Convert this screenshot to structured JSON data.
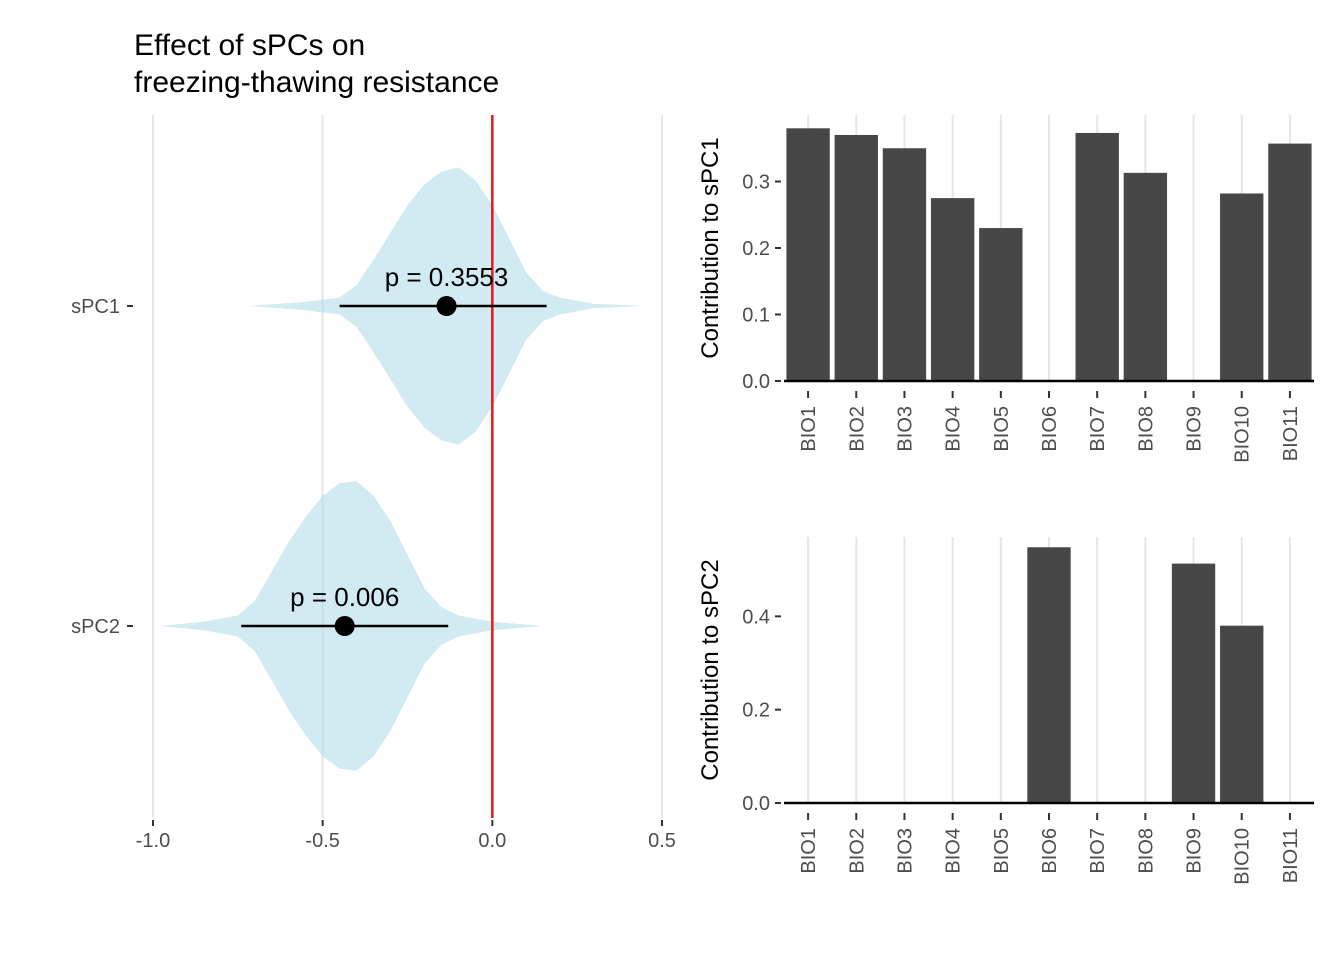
{
  "chart_data": [
    {
      "type": "violin",
      "title_lines": [
        "Effect of sPCs on",
        "freezing-thawing resistance"
      ],
      "xlabel": "",
      "ylabel": "",
      "xlim": [
        -1.0,
        0.5
      ],
      "x_ticks": [
        "-1.0",
        "-0.5",
        "0.0",
        "0.5"
      ],
      "x_tick_values": [
        -1.0,
        -0.5,
        0.0,
        0.5
      ],
      "reference_line": {
        "x": 0.0,
        "color": "#e31a1c"
      },
      "violin_color": "#add8e6",
      "grid": "vertical major",
      "series": [
        {
          "name": "sPC1",
          "median": -0.135,
          "interval": [
            -0.45,
            0.16
          ],
          "range": [
            -0.72,
            0.45
          ],
          "p_label": "p = 0.3553",
          "density": [
            [
              -0.72,
              0.0
            ],
            [
              -0.55,
              0.02
            ],
            [
              -0.45,
              0.04
            ],
            [
              -0.4,
              0.1
            ],
            [
              -0.35,
              0.22
            ],
            [
              -0.3,
              0.35
            ],
            [
              -0.25,
              0.48
            ],
            [
              -0.2,
              0.58
            ],
            [
              -0.15,
              0.64
            ],
            [
              -0.1,
              0.66
            ],
            [
              -0.05,
              0.6
            ],
            [
              0.0,
              0.48
            ],
            [
              0.05,
              0.32
            ],
            [
              0.1,
              0.16
            ],
            [
              0.15,
              0.07
            ],
            [
              0.2,
              0.04
            ],
            [
              0.3,
              0.01
            ],
            [
              0.45,
              0.0
            ]
          ]
        },
        {
          "name": "sPC2",
          "median": -0.435,
          "interval": [
            -0.74,
            -0.13
          ],
          "range": [
            -0.98,
            0.15
          ],
          "p_label": "p = 0.006",
          "density": [
            [
              -0.98,
              0.0
            ],
            [
              -0.85,
              0.02
            ],
            [
              -0.75,
              0.05
            ],
            [
              -0.7,
              0.12
            ],
            [
              -0.65,
              0.26
            ],
            [
              -0.6,
              0.4
            ],
            [
              -0.55,
              0.52
            ],
            [
              -0.5,
              0.62
            ],
            [
              -0.45,
              0.68
            ],
            [
              -0.4,
              0.69
            ],
            [
              -0.35,
              0.62
            ],
            [
              -0.3,
              0.5
            ],
            [
              -0.25,
              0.34
            ],
            [
              -0.2,
              0.18
            ],
            [
              -0.15,
              0.09
            ],
            [
              -0.1,
              0.05
            ],
            [
              0.0,
              0.02
            ],
            [
              0.15,
              0.0
            ]
          ]
        }
      ]
    },
    {
      "type": "bar",
      "ylabel": "Contribution to sPC1",
      "categories": [
        "BIO1",
        "BIO2",
        "BIO3",
        "BIO4",
        "BIO5",
        "BIO6",
        "BIO7",
        "BIO8",
        "BIO9",
        "BIO10",
        "BIO11"
      ],
      "values": [
        0.38,
        0.37,
        0.35,
        0.275,
        0.23,
        0,
        0.373,
        0.313,
        0,
        0.282,
        0.357
      ],
      "ylim": [
        0,
        0.4
      ],
      "y_ticks": [
        "0.0",
        "0.1",
        "0.2",
        "0.3"
      ],
      "y_tick_values": [
        0,
        0.1,
        0.2,
        0.3
      ],
      "bar_color": "#474747",
      "grid": "vertical major"
    },
    {
      "type": "bar",
      "ylabel": "Contribution to sPC2",
      "categories": [
        "BIO1",
        "BIO2",
        "BIO3",
        "BIO4",
        "BIO5",
        "BIO6",
        "BIO7",
        "BIO8",
        "BIO9",
        "BIO10",
        "BIO11"
      ],
      "values": [
        0,
        0,
        0,
        0,
        0,
        0.548,
        0,
        0,
        0.513,
        0.38,
        0
      ],
      "ylim": [
        0,
        0.57
      ],
      "y_ticks": [
        "0.0",
        "0.2",
        "0.4"
      ],
      "y_tick_values": [
        0,
        0.2,
        0.4
      ],
      "bar_color": "#474747",
      "grid": "vertical major"
    }
  ]
}
